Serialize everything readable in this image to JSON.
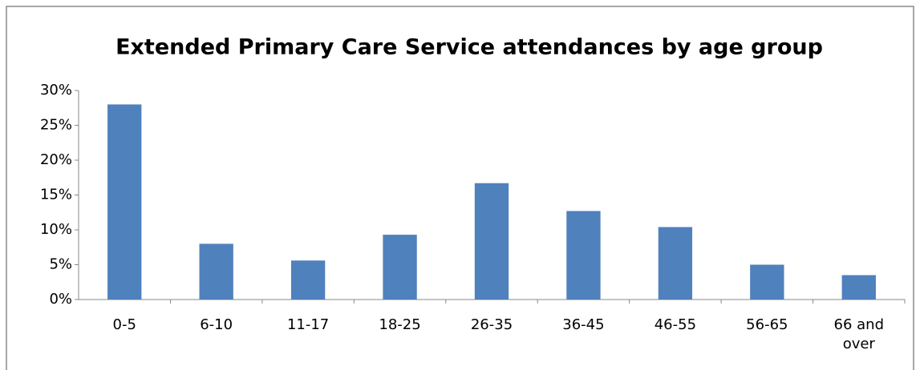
{
  "chart_data": {
    "type": "bar",
    "title": "Extended Primary Care Service attendances by age group",
    "categories": [
      "0-5",
      "6-10",
      "11-17",
      "18-25",
      "26-35",
      "36-45",
      "46-55",
      "56-65",
      "66 and over"
    ],
    "values": [
      28,
      8,
      5.6,
      9.3,
      16.7,
      12.7,
      10.4,
      5,
      3.5
    ],
    "color": "#4f81bd",
    "ylim": [
      0,
      30
    ],
    "yticks": [
      {
        "value": 0,
        "label": "0%"
      },
      {
        "value": 5,
        "label": "5%"
      },
      {
        "value": 10,
        "label": "10%"
      },
      {
        "value": 15,
        "label": "15%"
      },
      {
        "value": 20,
        "label": "20%"
      },
      {
        "value": 25,
        "label": "25%"
      },
      {
        "value": 30,
        "label": "30%"
      }
    ],
    "grid": false
  }
}
